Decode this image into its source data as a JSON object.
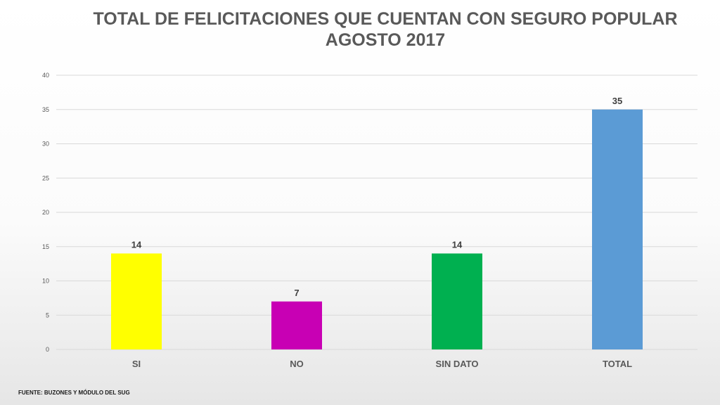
{
  "chart_data": {
    "type": "bar",
    "title": [
      "TOTAL DE FELICITACIONES QUE CUENTAN  CON SEGURO POPULAR",
      "AGOSTO 2017"
    ],
    "xlabel": "",
    "ylabel": "",
    "categories": [
      "SI",
      "NO",
      "SIN DATO",
      "TOTAL"
    ],
    "values": [
      14,
      7,
      14,
      35
    ],
    "data_labels": [
      "14",
      "7",
      "14",
      "35"
    ],
    "bar_colors": [
      "#FFFF00",
      "#C800B4",
      "#00B050",
      "#5B9BD5"
    ],
    "ylim": [
      0,
      40
    ],
    "yticks": [
      0,
      5,
      10,
      15,
      20,
      25,
      30,
      35,
      40
    ],
    "ytick_labels": [
      "0",
      "5",
      "10",
      "15",
      "20",
      "25",
      "30",
      "35",
      "40"
    ],
    "grid": true,
    "legend": "none"
  },
  "footer": {
    "source": "FUENTE: BUZONES Y MÓDULO DEL SUG"
  }
}
